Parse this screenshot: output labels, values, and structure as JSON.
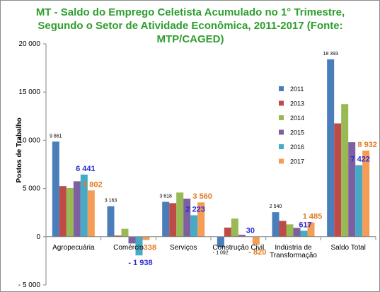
{
  "chart_data": {
    "type": "bar",
    "title": [
      "MT - Saldo do Emprego Celetista Acumulado no 1° Trimestre,",
      "Segundo o Setor de Atividade Econômica, 2011-2017 (Fonte:",
      "MTP/CAGED)"
    ],
    "ylabel": "Postos de Trabalho",
    "ylim": [
      -5000,
      20000
    ],
    "yticks": [
      -5000,
      0,
      5000,
      10000,
      15000,
      20000
    ],
    "ytick_labels": [
      "- 5 000",
      "0",
      "5 000",
      "10 000",
      "15 000",
      "20 000"
    ],
    "categories": [
      [
        "Agropecuária"
      ],
      [
        "Comércio"
      ],
      [
        "Serviços"
      ],
      [
        "Construção Civil"
      ],
      [
        "Indústria de",
        "Transformação"
      ],
      [
        "Saldo Total"
      ]
    ],
    "series": [
      {
        "name": "2011",
        "color": "#4a7ebb",
        "values": [
          9861,
          3163,
          3618,
          -1092,
          2540,
          18393
        ]
      },
      {
        "name": "2013",
        "color": "#be4b48",
        "values": [
          5250,
          120,
          3480,
          950,
          1640,
          11750
        ]
      },
      {
        "name": "2014",
        "color": "#98b954",
        "values": [
          5050,
          820,
          4580,
          1880,
          1280,
          13750
        ]
      },
      {
        "name": "2015",
        "color": "#7d60a0",
        "values": [
          5750,
          -700,
          3950,
          200,
          920,
          9800
        ]
      },
      {
        "name": "2016",
        "color": "#46aac5",
        "values": [
          6441,
          -1938,
          2223,
          30,
          617,
          7422
        ]
      },
      {
        "name": "2017",
        "color": "#f59d56",
        "values": [
          4802,
          -338,
          3560,
          -820,
          1485,
          8932
        ]
      }
    ],
    "data_labels": [
      {
        "cat": 0,
        "series": 0,
        "text": "9 861",
        "style": "small",
        "color": "#000000"
      },
      {
        "cat": 1,
        "series": 0,
        "text": "3 163",
        "style": "small",
        "color": "#000000"
      },
      {
        "cat": 2,
        "series": 0,
        "text": "3 618",
        "style": "small",
        "color": "#000000"
      },
      {
        "cat": 3,
        "series": 0,
        "text": "- 1 092",
        "style": "small",
        "color": "#000000"
      },
      {
        "cat": 4,
        "series": 0,
        "text": "2 540",
        "style": "small",
        "color": "#000000"
      },
      {
        "cat": 5,
        "series": 0,
        "text": "18 393",
        "style": "small",
        "color": "#000000"
      },
      {
        "cat": 0,
        "series": 4,
        "text": "6 441",
        "style": "big",
        "color": "#2b2bd6"
      },
      {
        "cat": 1,
        "series": 4,
        "text": "- 1 938",
        "style": "big",
        "color": "#2b2bd6"
      },
      {
        "cat": 2,
        "series": 4,
        "text": "2 223",
        "style": "big",
        "color": "#2b2bd6"
      },
      {
        "cat": 3,
        "series": 4,
        "text": "30",
        "style": "big",
        "color": "#2b2bd6"
      },
      {
        "cat": 4,
        "series": 4,
        "text": "617",
        "style": "big",
        "color": "#2b2bd6"
      },
      {
        "cat": 5,
        "series": 4,
        "text": "7 422",
        "style": "big",
        "color": "#2b2bd6"
      },
      {
        "cat": 0,
        "series": 5,
        "text": "4 802",
        "style": "big",
        "color": "#e07b22"
      },
      {
        "cat": 1,
        "series": 5,
        "text": "- 338",
        "style": "big",
        "color": "#e07b22"
      },
      {
        "cat": 2,
        "series": 5,
        "text": "3 560",
        "style": "big",
        "color": "#e07b22"
      },
      {
        "cat": 3,
        "series": 5,
        "text": "- 820",
        "style": "big",
        "color": "#e07b22"
      },
      {
        "cat": 4,
        "series": 5,
        "text": "1 485",
        "style": "big",
        "color": "#e07b22"
      },
      {
        "cat": 5,
        "series": 5,
        "text": "8 932",
        "style": "big",
        "color": "#e07b22"
      }
    ],
    "legend_position": "right",
    "grid": false
  }
}
